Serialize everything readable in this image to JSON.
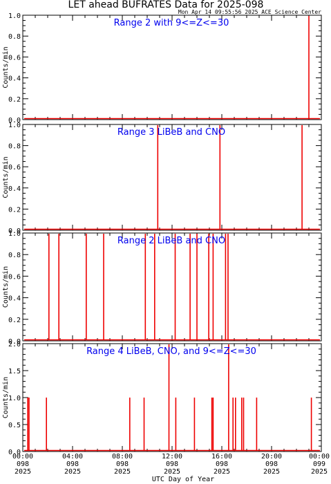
{
  "title": "LET ahead BUFRATES Data for 2025-098",
  "timestamp": "Mon Apr 14 09:55:56 2025 ACE Science Center",
  "xlabel": "UTC Day of Year",
  "colors": {
    "series": "#ee0000",
    "panel_label": "#0000ee",
    "axes": "#000000"
  },
  "chart_data": [
    {
      "type": "line",
      "title": "Range 2 with 9<=Z<=30",
      "ylabel": "Counts/min",
      "ylim": [
        0,
        1.0
      ],
      "yticks": [
        "0.0",
        "0.2",
        "0.4",
        "0.6",
        "0.8",
        "1.0"
      ],
      "xlim_hours": [
        0,
        24
      ],
      "spikes": [
        {
          "hour": 23.0,
          "value": 1.0
        }
      ]
    },
    {
      "type": "line",
      "title": "Range 3 LiBeB and CNO",
      "ylabel": "Counts/min",
      "ylim": [
        0,
        1.0
      ],
      "yticks": [
        "0.0",
        "0.2",
        "0.4",
        "0.6",
        "0.8",
        "1.0"
      ],
      "xlim_hours": [
        0,
        24
      ],
      "spikes": [
        {
          "hour": 10.85,
          "value": 1.0
        },
        {
          "hour": 15.85,
          "value": 1.0
        },
        {
          "hour": 22.45,
          "value": 1.0
        }
      ]
    },
    {
      "type": "line",
      "title": "Range 2 LiBeB and CNO",
      "ylabel": "Counts/min",
      "ylim": [
        0,
        1.0
      ],
      "yticks": [
        "0.0",
        "0.2",
        "0.4",
        "0.6",
        "0.8",
        "1.0"
      ],
      "xlim_hours": [
        0,
        24
      ],
      "spikes": [
        {
          "hour": 2.1,
          "value": 1.0
        },
        {
          "hour": 2.9,
          "value": 1.0
        },
        {
          "hour": 5.1,
          "value": 1.0
        },
        {
          "hour": 6.5,
          "value": 1.0
        },
        {
          "hour": 9.85,
          "value": 1.0
        },
        {
          "hour": 10.6,
          "value": 1.0
        },
        {
          "hour": 12.25,
          "value": 1.0
        },
        {
          "hour": 13.45,
          "value": 1.0
        },
        {
          "hour": 14.0,
          "value": 1.0
        },
        {
          "hour": 14.95,
          "value": 1.0
        },
        {
          "hour": 15.3,
          "value": 1.0
        },
        {
          "hour": 16.3,
          "value": 1.0
        },
        {
          "hour": 16.5,
          "value": 1.0
        }
      ]
    },
    {
      "type": "line",
      "title": "Range 4 LiBeB, CNO, and 9<=Z<=30",
      "ylabel": "Counts/min",
      "ylim": [
        0,
        2.0
      ],
      "yticks": [
        "0.0",
        "0.5",
        "1.0",
        "1.5",
        "2.0"
      ],
      "xlim_hours": [
        0,
        24
      ],
      "spikes": [
        {
          "hour": 0.4,
          "value": 1.0
        },
        {
          "hour": 0.5,
          "value": 1.0
        },
        {
          "hour": 1.9,
          "value": 1.0
        },
        {
          "hour": 8.6,
          "value": 1.0
        },
        {
          "hour": 9.75,
          "value": 1.0
        },
        {
          "hour": 11.75,
          "value": 2.0
        },
        {
          "hour": 12.3,
          "value": 1.0
        },
        {
          "hour": 13.8,
          "value": 1.0
        },
        {
          "hour": 15.2,
          "value": 1.0
        },
        {
          "hour": 15.3,
          "value": 1.0
        },
        {
          "hour": 16.55,
          "value": 2.0
        },
        {
          "hour": 16.9,
          "value": 1.0
        },
        {
          "hour": 17.1,
          "value": 1.0
        },
        {
          "hour": 17.6,
          "value": 1.0
        },
        {
          "hour": 17.75,
          "value": 1.0
        },
        {
          "hour": 18.8,
          "value": 1.0
        },
        {
          "hour": 23.2,
          "value": 1.0
        }
      ]
    }
  ],
  "x_ticks": [
    {
      "time": "00:00",
      "doy": "098",
      "year": "2025",
      "hour": 0
    },
    {
      "time": "04:00",
      "doy": "098",
      "year": "2025",
      "hour": 4
    },
    {
      "time": "08:00",
      "doy": "098",
      "year": "2025",
      "hour": 8
    },
    {
      "time": "12:00",
      "doy": "098",
      "year": "2025",
      "hour": 12
    },
    {
      "time": "16:00",
      "doy": "098",
      "year": "2025",
      "hour": 16
    },
    {
      "time": "20:00",
      "doy": "098",
      "year": "2025",
      "hour": 20
    },
    {
      "time": "00:00",
      "doy": "099",
      "year": "2025",
      "hour": 24
    }
  ]
}
